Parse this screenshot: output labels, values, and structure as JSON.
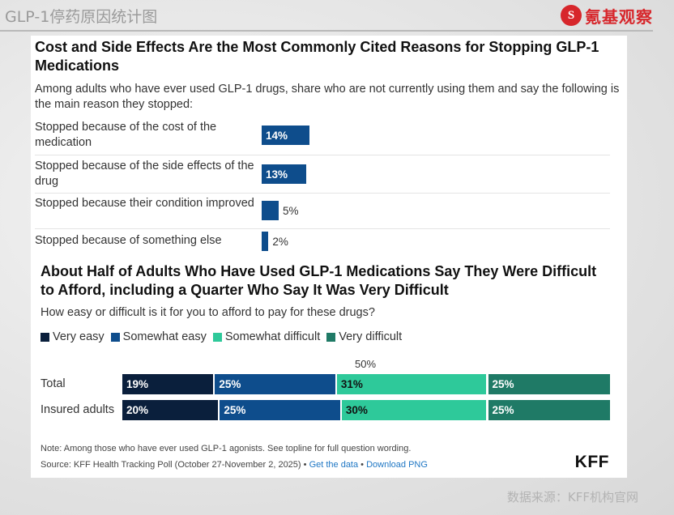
{
  "page": {
    "title": "GLP-1停药原因统计图",
    "logo_text": "氪基观察",
    "logo_mark": "S",
    "footer_source": "数据来源：KFF机构官网"
  },
  "chart_data": [
    {
      "type": "bar",
      "title": "Cost and Side Effects Are the Most Commonly Cited Reasons for Stopping GLP-1 Medications",
      "subtitle": "Among adults who have ever used GLP-1 drugs, share who are not currently using them and say the following is the main reason they stopped:",
      "categories": [
        "Stopped because of the cost of the medication",
        "Stopped because of the side effects of the drug",
        "Stopped because their condition improved",
        "Stopped because of something else"
      ],
      "values": [
        14,
        13,
        5,
        2
      ],
      "value_labels": [
        "14%",
        "13%",
        "5%",
        "2%"
      ],
      "unit": "%",
      "color": "#0e4d8c"
    },
    {
      "type": "bar",
      "stacked": true,
      "orientation": "horizontal",
      "title": "About Half of Adults Who Have Used GLP-1 Medications Say They Were Difficult to Afford, including a Quarter Who Say It Was Very Difficult",
      "subtitle": "How easy or difficult is it for you to afford to pay for these drugs?",
      "midpoint_label": "50%",
      "categories": [
        "Total",
        "Insured adults"
      ],
      "series": [
        {
          "name": "Very easy",
          "color": "#0a1f3c",
          "text_color": "#ffffff",
          "values": [
            19,
            20
          ],
          "labels": [
            "19%",
            "20%"
          ]
        },
        {
          "name": "Somewhat easy",
          "color": "#0e4d8c",
          "text_color": "#ffffff",
          "values": [
            25,
            25
          ],
          "labels": [
            "25%",
            "25%"
          ]
        },
        {
          "name": "Somewhat difficult",
          "color": "#2ec99a",
          "text_color": "#111111",
          "values": [
            31,
            30
          ],
          "labels": [
            "31%",
            "30%"
          ]
        },
        {
          "name": "Very difficult",
          "color": "#1f7a66",
          "text_color": "#ffffff",
          "values": [
            25,
            25
          ],
          "labels": [
            "25%",
            "25%"
          ]
        }
      ],
      "legend_position": "top-left",
      "note": "Note: Among those who have ever used GLP-1 agonists. See topline for full question wording.",
      "source": "Source: KFF Health Tracking Poll (October 27-November 2, 2025) •",
      "links": [
        "Get the data",
        "Download PNG"
      ],
      "link_separator": "•",
      "brand": "KFF"
    }
  ]
}
